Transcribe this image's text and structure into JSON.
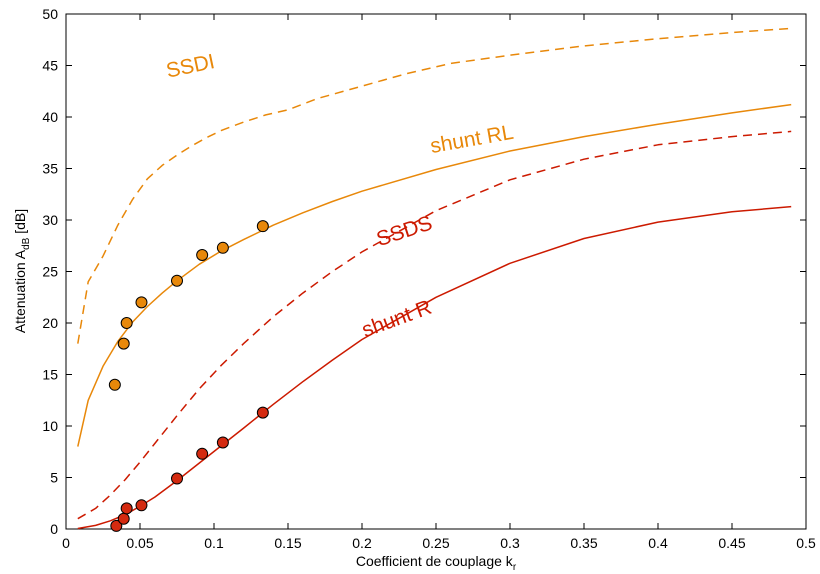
{
  "chart_data": {
    "type": "line",
    "xlabel": "Coefficient de couplage k",
    "xlabel_sub": "r",
    "ylabel": "Attenuation A",
    "ylabel_sub": "dB",
    "ylabel_unit": "[dB]",
    "xlim": [
      0,
      0.5
    ],
    "ylim": [
      0,
      50
    ],
    "xticks": [
      0,
      0.05,
      0.1,
      0.15,
      0.2,
      0.25,
      0.3,
      0.35,
      0.4,
      0.45,
      0.5
    ],
    "xtick_labels": [
      "0",
      "0.05",
      "0.1",
      "0.15",
      "0.2",
      "0.25",
      "0.3",
      "0.35",
      "0.4",
      "0.45",
      "0.5"
    ],
    "yticks": [
      0,
      5,
      10,
      15,
      20,
      25,
      30,
      35,
      40,
      45,
      50
    ],
    "ytick_labels": [
      "0",
      "5",
      "10",
      "15",
      "20",
      "25",
      "30",
      "35",
      "40",
      "45",
      "50"
    ],
    "grid": false,
    "legend": "none",
    "series": [
      {
        "name": "SSDI",
        "color": "#E8880A",
        "dash": "dashed",
        "x": [
          0.008,
          0.015,
          0.025,
          0.035,
          0.045,
          0.055,
          0.065,
          0.075,
          0.085,
          0.095,
          0.105,
          0.12,
          0.135,
          0.15,
          0.17,
          0.2,
          0.23,
          0.26,
          0.3,
          0.35,
          0.4,
          0.45,
          0.49
        ],
        "y": [
          18,
          24,
          26.5,
          29.5,
          32,
          34,
          35.3,
          36.3,
          37.2,
          38,
          38.7,
          39.5,
          40.2,
          40.7,
          41.8,
          43,
          44.2,
          45.2,
          46,
          46.9,
          47.6,
          48.2,
          48.6
        ]
      },
      {
        "name": "shunt RL",
        "color": "#E8880A",
        "dash": "solid",
        "x": [
          0.008,
          0.015,
          0.025,
          0.035,
          0.045,
          0.055,
          0.065,
          0.075,
          0.09,
          0.105,
          0.12,
          0.14,
          0.16,
          0.18,
          0.2,
          0.25,
          0.3,
          0.35,
          0.4,
          0.45,
          0.49
        ],
        "y": [
          8,
          12.5,
          15.8,
          18.2,
          20.1,
          21.6,
          22.9,
          24.1,
          25.7,
          27,
          28.1,
          29.5,
          30.7,
          31.8,
          32.8,
          34.9,
          36.7,
          38.1,
          39.3,
          40.4,
          41.2
        ]
      },
      {
        "name": "SSDS",
        "color": "#CC1A00",
        "dash": "dashed",
        "x": [
          0.008,
          0.02,
          0.03,
          0.04,
          0.05,
          0.06,
          0.075,
          0.09,
          0.105,
          0.12,
          0.14,
          0.16,
          0.18,
          0.2,
          0.25,
          0.3,
          0.35,
          0.4,
          0.45,
          0.49
        ],
        "y": [
          1,
          2,
          3.3,
          4.8,
          6.5,
          8.3,
          11,
          13.6,
          15.9,
          18,
          20.6,
          22.9,
          25,
          26.9,
          30.9,
          33.9,
          35.9,
          37.3,
          38.1,
          38.6
        ]
      },
      {
        "name": "shunt R",
        "color": "#CC1A00",
        "dash": "solid",
        "x": [
          0.008,
          0.02,
          0.03,
          0.04,
          0.05,
          0.06,
          0.075,
          0.09,
          0.105,
          0.12,
          0.14,
          0.16,
          0.18,
          0.2,
          0.25,
          0.3,
          0.35,
          0.4,
          0.45,
          0.49
        ],
        "y": [
          0.05,
          0.35,
          0.8,
          1.4,
          2.2,
          3.1,
          4.7,
          6.4,
          8.1,
          9.8,
          12.1,
          14.3,
          16.4,
          18.4,
          22.5,
          25.8,
          28.2,
          29.8,
          30.8,
          31.3
        ]
      },
      {
        "name": "",
        "color": "#E8880A",
        "marker": "circle",
        "x": [
          0.033,
          0.039,
          0.041,
          0.051,
          0.075,
          0.092,
          0.106,
          0.133
        ],
        "y": [
          14,
          18,
          20,
          22,
          24.1,
          26.6,
          27.3,
          29.4
        ]
      },
      {
        "name": "",
        "color": "#D42A10",
        "marker": "circle",
        "x": [
          0.034,
          0.039,
          0.041,
          0.051,
          0.075,
          0.092,
          0.106,
          0.133
        ],
        "y": [
          0.3,
          1,
          2,
          2.3,
          4.9,
          7.3,
          8.4,
          11.3
        ]
      }
    ],
    "annotations": [
      {
        "text": "SSDI",
        "x": 0.085,
        "y": 44.3,
        "color": "#E8880A",
        "rotate": -12
      },
      {
        "text": "shunt RL",
        "x": 0.275,
        "y": 37.2,
        "color": "#E8880A",
        "rotate": -10
      },
      {
        "text": "SSDS",
        "x": 0.23,
        "y": 28.3,
        "color": "#CC1A00",
        "rotate": -18
      },
      {
        "text": "shunt R",
        "x": 0.225,
        "y": 19.8,
        "color": "#CC1A00",
        "rotate": -20
      }
    ]
  }
}
